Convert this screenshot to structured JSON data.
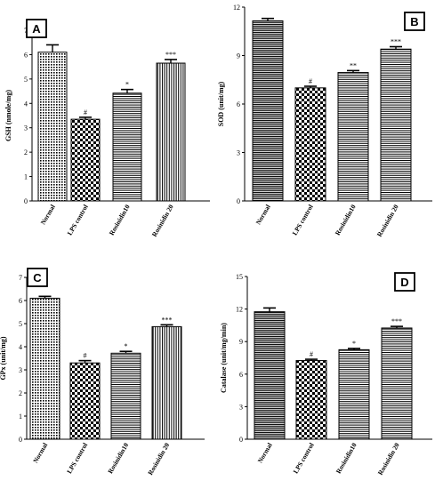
{
  "chart_data": [
    {
      "panel": "A",
      "type": "bar",
      "ylabel": "GSH (nmole/mg)",
      "ylim": [
        0,
        7
      ],
      "yticks": [
        "0",
        "1",
        "2",
        "3",
        "4",
        "5",
        "6",
        "7"
      ],
      "categories": [
        "Normal",
        "LPS control",
        "Rosinidin10",
        "Rosinidin 20"
      ],
      "values": [
        6.1,
        3.35,
        4.42,
        5.65
      ],
      "errors": [
        0.3,
        0.08,
        0.15,
        0.15
      ],
      "significance": [
        "",
        "#",
        "*",
        "***"
      ],
      "patterns": [
        "pat-dots",
        "pat-check",
        "pat-hlines",
        "pat-vlines"
      ]
    },
    {
      "panel": "B",
      "type": "bar",
      "ylabel": "SOD (unit/mg)",
      "ylim": [
        0,
        12
      ],
      "yticks": [
        "0",
        "3",
        "6",
        "9",
        "12"
      ],
      "categories": [
        "Normal",
        "LPS control",
        "Rosinidin10",
        "Rosinidin 20"
      ],
      "values": [
        11.15,
        7.0,
        7.95,
        9.4
      ],
      "errors": [
        0.15,
        0.1,
        0.12,
        0.15
      ],
      "significance": [
        "",
        "#",
        "**",
        "***"
      ],
      "patterns": [
        "pat-hlines-dense",
        "pat-check",
        "pat-hlines",
        "pat-hlines"
      ]
    },
    {
      "panel": "C",
      "type": "bar",
      "ylabel": "GPx (unit/mg)",
      "ylim": [
        0,
        7
      ],
      "yticks": [
        "0",
        "1",
        "2",
        "3",
        "4",
        "5",
        "6",
        "7"
      ],
      "categories": [
        "Normal",
        "LPS control",
        "Rosinidin10",
        "Rosinidin 20"
      ],
      "values": [
        6.1,
        3.3,
        3.72,
        4.87
      ],
      "errors": [
        0.08,
        0.1,
        0.08,
        0.08
      ],
      "significance": [
        "",
        "#",
        "*",
        "***"
      ],
      "patterns": [
        "pat-dots",
        "pat-check",
        "pat-hlines",
        "pat-vlines"
      ]
    },
    {
      "panel": "D",
      "type": "bar",
      "ylabel": "Catalase (unit/mg/min)",
      "ylim": [
        0,
        15
      ],
      "yticks": [
        "0",
        "3",
        "6",
        "9",
        "12",
        "15"
      ],
      "categories": [
        "Normal",
        "LPS control",
        "Rosinidin10",
        "Rosinidin 20"
      ],
      "values": [
        11.75,
        7.25,
        8.25,
        10.25
      ],
      "errors": [
        0.35,
        0.12,
        0.12,
        0.15
      ],
      "significance": [
        "",
        "#",
        "*",
        "***"
      ],
      "patterns": [
        "pat-hlines-dense",
        "pat-check",
        "pat-hlines",
        "pat-hlines"
      ]
    }
  ]
}
